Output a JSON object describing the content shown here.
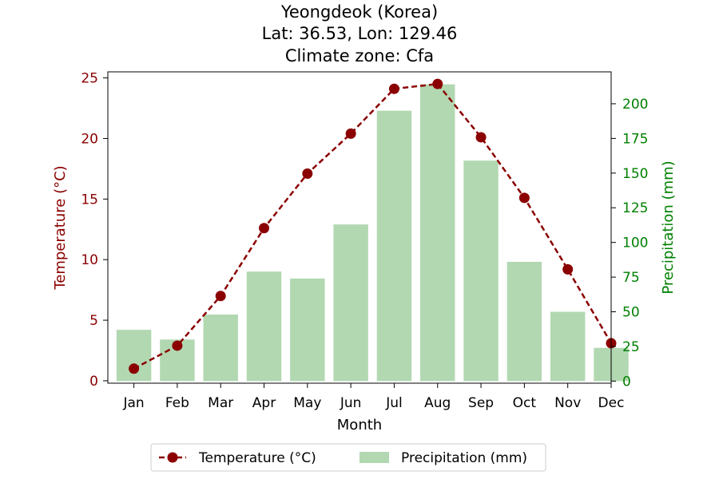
{
  "chart_data": {
    "type": "bar+line",
    "title": "Yeongdeok (Korea)",
    "subtitle_lines": [
      "Lat: 36.53, Lon: 129.46",
      "Climate zone: Cfa"
    ],
    "xlabel": "Month",
    "ylabel_left": "Temperature (°C)",
    "ylabel_right": "Precipitation (mm)",
    "categories": [
      "Jan",
      "Feb",
      "Mar",
      "Apr",
      "May",
      "Jun",
      "Jul",
      "Aug",
      "Sep",
      "Oct",
      "Nov",
      "Dec"
    ],
    "series": [
      {
        "name": "Temperature (°C)",
        "type": "line",
        "axis": "left",
        "color": "#8b0000",
        "values": [
          1.0,
          2.9,
          7.0,
          12.6,
          17.1,
          20.4,
          24.1,
          24.5,
          20.1,
          15.1,
          9.2,
          3.1
        ]
      },
      {
        "name": "Precipitation (mm)",
        "type": "bar",
        "axis": "right",
        "color": "#b2d8b2",
        "values": [
          37,
          30,
          48,
          79,
          74,
          113,
          195,
          214,
          159,
          86,
          50,
          24
        ]
      }
    ],
    "ylim_left": [
      -0.2,
      25.5
    ],
    "ylim_right": [
      -1.5,
      223
    ],
    "yticks_left": [
      "0",
      "5",
      "10",
      "15",
      "20",
      "25"
    ],
    "yticks_right": [
      "0",
      "25",
      "50",
      "75",
      "100",
      "125",
      "150",
      "175",
      "200"
    ],
    "left_axis_color": "#8b0000",
    "right_axis_color": "#008000",
    "grid": false,
    "legend_position": "bottom-center"
  }
}
